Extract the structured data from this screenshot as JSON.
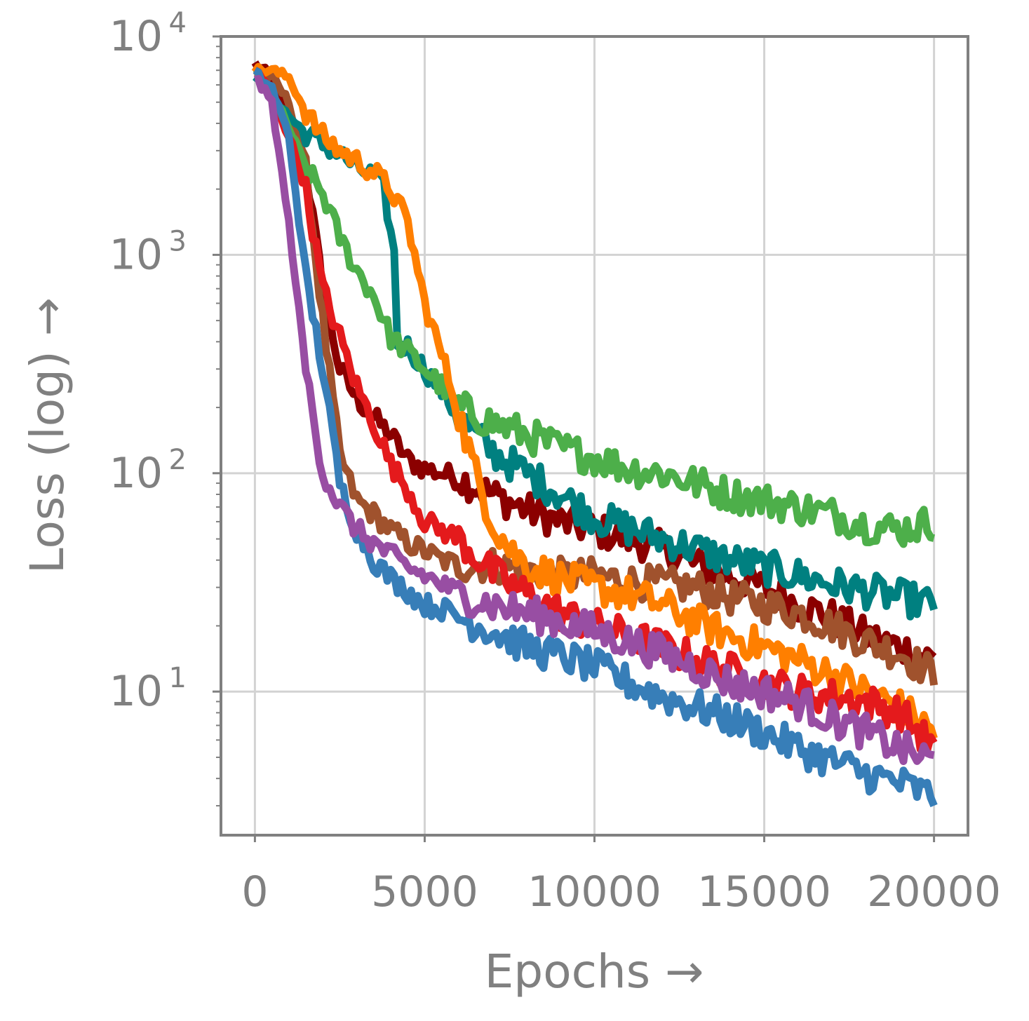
{
  "chart_data": {
    "type": "line",
    "xlabel": "Epochs →",
    "ylabel": "Loss (log) →",
    "yscale": "log",
    "xlim": [
      -1000,
      21000
    ],
    "ylim": [
      2.2,
      10000
    ],
    "grid": true,
    "xticks": [
      {
        "value": 0,
        "label": "0"
      },
      {
        "value": 5000,
        "label": "5000"
      },
      {
        "value": 10000,
        "label": "10000"
      },
      {
        "value": 15000,
        "label": "15000"
      },
      {
        "value": 20000,
        "label": "20000"
      }
    ],
    "yticks": [
      {
        "value": 10,
        "base": "10",
        "exp": "1"
      },
      {
        "value": 100,
        "base": "10",
        "exp": "2"
      },
      {
        "value": 1000,
        "base": "10",
        "exp": "3"
      },
      {
        "value": 10000,
        "base": "10",
        "exp": "4"
      }
    ],
    "series": [
      {
        "color": "#8b0000",
        "x": [
          0,
          500,
          1000,
          1500,
          2000,
          2500,
          3000,
          3500,
          4000,
          4500,
          5000,
          5500,
          6000,
          7000,
          8000,
          9000,
          10000,
          11000,
          12000,
          13000,
          14000,
          15000,
          16000,
          17000,
          18000,
          19000,
          20000
        ],
        "y": [
          7500,
          6500,
          4500,
          2500,
          700,
          300,
          220,
          180,
          150,
          115,
          105,
          100,
          95,
          80,
          68,
          60,
          55,
          50,
          45,
          38,
          34,
          30,
          25,
          22,
          18,
          16,
          14
        ]
      },
      {
        "color": "#a0522d",
        "x": [
          0,
          500,
          1000,
          1500,
          2000,
          2500,
          3000,
          3500,
          4000,
          4500,
          5000,
          5500,
          6000,
          7000,
          8000,
          9000,
          10000,
          11000,
          12000,
          13000,
          14000,
          15000,
          16000,
          17000,
          18000,
          19000,
          20000
        ],
        "y": [
          7000,
          6500,
          5000,
          2500,
          500,
          120,
          75,
          65,
          55,
          48,
          44,
          40,
          38,
          38,
          36,
          34,
          34,
          32,
          31,
          30,
          27,
          25,
          23,
          20,
          17,
          15,
          12
        ]
      },
      {
        "color": "#008080",
        "x": [
          0,
          500,
          1000,
          1500,
          2000,
          2500,
          3000,
          3500,
          3800,
          4100,
          4200,
          4500,
          5000,
          5500,
          6000,
          7000,
          8000,
          9000,
          10000,
          11000,
          12000,
          13000,
          14000,
          15000,
          16000,
          17000,
          18000,
          19000,
          20000
        ],
        "y": [
          6800,
          5500,
          4300,
          3600,
          3200,
          2900,
          2500,
          2300,
          2000,
          1000,
          400,
          380,
          300,
          240,
          180,
          125,
          100,
          80,
          63,
          56,
          50,
          45,
          40,
          37,
          34,
          31,
          29,
          27,
          25
        ]
      },
      {
        "color": "#4daf4a",
        "x": [
          0,
          500,
          1000,
          1500,
          2000,
          2500,
          3000,
          3500,
          4000,
          4500,
          5000,
          5500,
          6000,
          7000,
          8000,
          9000,
          10000,
          11000,
          12000,
          13000,
          14000,
          15000,
          16000,
          17000,
          18000,
          19000,
          20000
        ],
        "y": [
          6800,
          5500,
          3800,
          2500,
          1900,
          1200,
          850,
          650,
          420,
          360,
          300,
          250,
          200,
          170,
          150,
          130,
          118,
          105,
          100,
          90,
          80,
          75,
          70,
          65,
          58,
          55,
          60
        ]
      },
      {
        "color": "#ff7f00",
        "x": [
          0,
          500,
          1000,
          1500,
          2000,
          2500,
          3000,
          3500,
          4000,
          4500,
          5000,
          5500,
          6000,
          6500,
          7000,
          7500,
          8000,
          9000,
          10000,
          11000,
          12000,
          13000,
          14000,
          15000,
          16000,
          17000,
          18000,
          19000,
          20000
        ],
        "y": [
          7000,
          7000,
          6500,
          4500,
          3500,
          3000,
          2700,
          2400,
          2000,
          1400,
          600,
          350,
          190,
          100,
          60,
          45,
          38,
          33,
          30,
          28,
          25,
          21,
          18,
          16,
          14,
          12,
          10,
          8.5,
          6.5
        ]
      },
      {
        "color": "#e41a1c",
        "x": [
          0,
          500,
          1000,
          1500,
          2000,
          2500,
          3000,
          3500,
          4000,
          4500,
          5000,
          5500,
          6000,
          7000,
          8000,
          9000,
          10000,
          11000,
          12000,
          13000,
          14000,
          15000,
          16000,
          17000,
          18000,
          19000,
          20000
        ],
        "y": [
          7000,
          5500,
          3500,
          2000,
          700,
          420,
          250,
          170,
          110,
          85,
          60,
          55,
          50,
          35,
          28,
          23,
          20,
          18,
          16,
          14,
          12.5,
          11,
          10,
          9.5,
          9,
          8,
          5.5
        ]
      },
      {
        "color": "#377eb8",
        "x": [
          0,
          500,
          1000,
          1500,
          2000,
          2500,
          3000,
          3500,
          4000,
          4500,
          5000,
          5500,
          6000,
          7000,
          8000,
          9000,
          10000,
          11000,
          12000,
          13000,
          14000,
          15000,
          16000,
          17000,
          18000,
          19000,
          20000
        ],
        "y": [
          6800,
          5800,
          3500,
          800,
          300,
          90,
          55,
          40,
          33,
          29,
          25,
          24,
          22,
          19,
          16,
          14.5,
          13,
          11,
          9.5,
          8.5,
          7.5,
          6.5,
          5.5,
          4.8,
          4.2,
          3.8,
          3.3
        ]
      },
      {
        "color": "#984ea3",
        "x": [
          0,
          500,
          1000,
          1500,
          2000,
          2500,
          3000,
          3500,
          4000,
          4500,
          5000,
          5500,
          6000,
          7000,
          8000,
          9000,
          10000,
          11000,
          12000,
          13000,
          14000,
          15000,
          16000,
          17000,
          18000,
          19000,
          20000
        ],
        "y": [
          6500,
          5000,
          1400,
          300,
          100,
          70,
          55,
          48,
          42,
          37,
          34,
          31,
          28,
          25,
          23,
          21,
          19,
          17,
          15,
          13,
          11,
          10,
          9,
          7.5,
          6.5,
          5.5,
          4.8
        ]
      }
    ]
  }
}
